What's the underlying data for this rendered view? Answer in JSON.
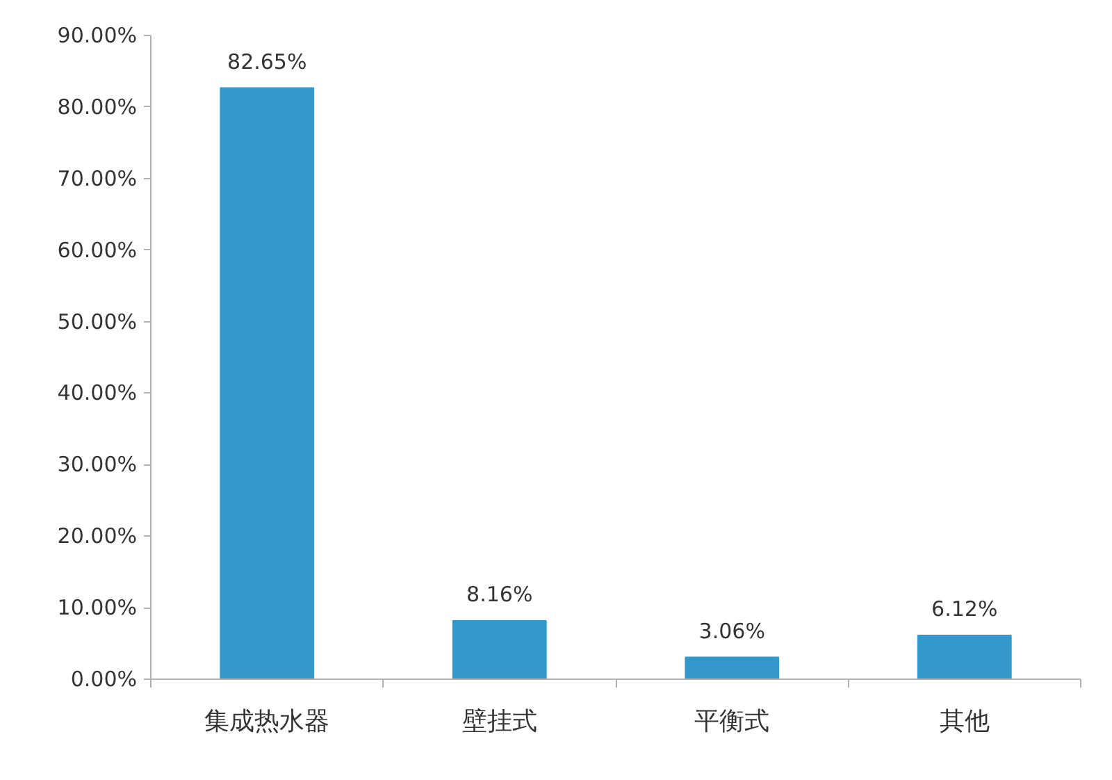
{
  "chart_data": {
    "type": "bar",
    "categories": [
      "集成热水器",
      "壁挂式",
      "平衡式",
      "其他"
    ],
    "values": [
      82.65,
      8.16,
      3.06,
      6.12
    ],
    "color": "#3399cc",
    "value_labels": [
      "82.65%",
      "8.16%",
      "3.06%",
      "6.12%"
    ],
    "ylim": [
      0,
      90
    ],
    "yticks": [
      {
        "value": 0,
        "label": "0.00%"
      },
      {
        "value": 10,
        "label": "10.00%"
      },
      {
        "value": 20,
        "label": "20.00%"
      },
      {
        "value": 30,
        "label": "30.00%"
      },
      {
        "value": 40,
        "label": "40.00%"
      },
      {
        "value": 50,
        "label": "50.00%"
      },
      {
        "value": 60,
        "label": "60.00%"
      },
      {
        "value": 70,
        "label": "70.00%"
      },
      {
        "value": 80,
        "label": "80.00%"
      },
      {
        "value": 90,
        "label": "90.00%"
      }
    ],
    "grid": false
  }
}
